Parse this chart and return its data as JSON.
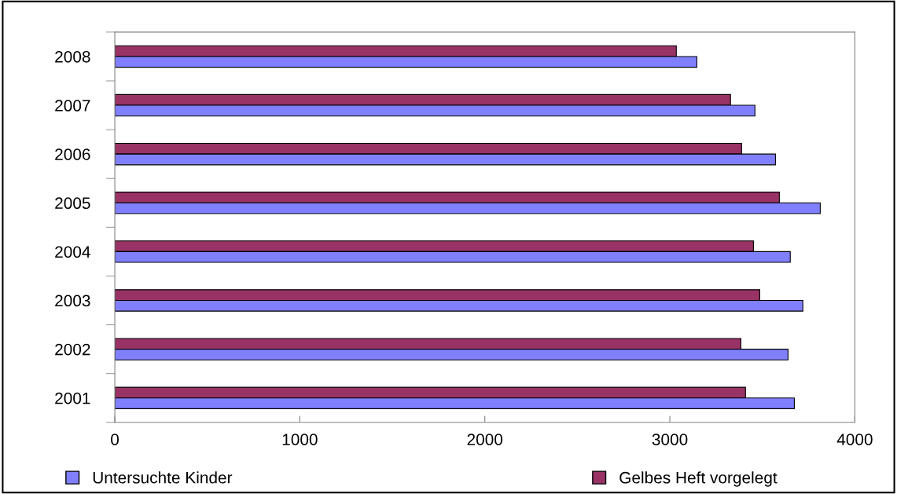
{
  "chart_data": {
    "type": "bar",
    "orientation": "horizontal",
    "categories": [
      "2008",
      "2007",
      "2006",
      "2005",
      "2004",
      "2003",
      "2002",
      "2001"
    ],
    "series": [
      {
        "name": "Gelbes Heft vorgelegt",
        "color": "#993366",
        "values": [
          3035,
          3328,
          3388,
          3592,
          3452,
          3486,
          3384,
          3409
        ]
      },
      {
        "name": "Untersuchte Kinder",
        "color": "#8080ff",
        "values": [
          3146,
          3460,
          3571,
          3813,
          3651,
          3719,
          3639,
          3673
        ]
      }
    ],
    "xlim": [
      0,
      4000
    ],
    "xticks": [
      0,
      1000,
      2000,
      3000,
      4000
    ],
    "grid": false,
    "legend": "bottom"
  }
}
